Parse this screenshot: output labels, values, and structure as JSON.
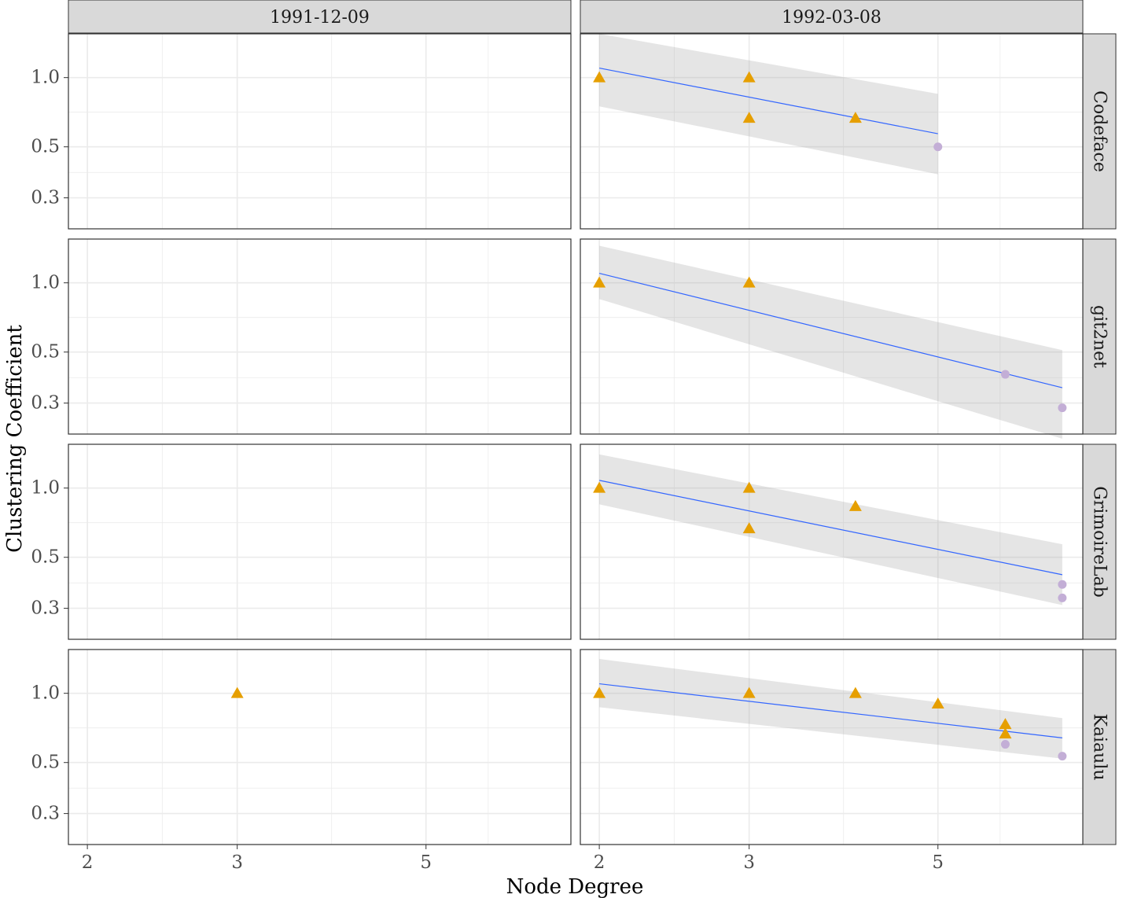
{
  "chart_data": {
    "type": "scatter",
    "xlabel": "Node Degree",
    "ylabel": "Clustering Coefficient",
    "x_scale": "log",
    "y_scale": "log",
    "xlim": [
      1.9,
      7.4
    ],
    "ylim": [
      0.22,
      1.55
    ],
    "x_ticks": [
      2,
      3,
      5
    ],
    "x_tick_labels": [
      "2",
      "3",
      "5"
    ],
    "y_ticks": [
      0.3,
      0.5,
      1.0
    ],
    "y_tick_labels": [
      "0.3",
      "0.5",
      "1.0"
    ],
    "grid": true,
    "facet_columns": [
      "1991-12-09",
      "1992-03-08"
    ],
    "facet_rows": [
      "Codeface",
      "git2net",
      "GrimoireLab",
      "Kaiaulu"
    ],
    "colors": {
      "triangle": "#e69f00",
      "circle": "#c3aed6",
      "fit_line": "#3366ff",
      "ribbon": "#ebebeb",
      "strip_bg": "#d9d9d9",
      "grid": "#ebebeb"
    },
    "panels": [
      {
        "column": "1991-12-09",
        "row": "Codeface",
        "triangles": [],
        "circles": [],
        "fit": null
      },
      {
        "column": "1992-03-08",
        "row": "Codeface",
        "triangles": [
          [
            2,
            1.0
          ],
          [
            3,
            1.0
          ],
          [
            3,
            0.667
          ],
          [
            4,
            0.667
          ]
        ],
        "circles": [
          [
            5,
            0.5
          ]
        ],
        "fit": {
          "x": [
            2,
            5
          ],
          "y": [
            1.1,
            0.57
          ],
          "lower": [
            0.75,
            0.38
          ],
          "upper": [
            1.55,
            0.85
          ]
        }
      },
      {
        "column": "1991-12-09",
        "row": "git2net",
        "triangles": [],
        "circles": [],
        "fit": null
      },
      {
        "column": "1992-03-08",
        "row": "git2net",
        "triangles": [
          [
            2,
            1.0
          ],
          [
            3,
            1.0
          ]
        ],
        "circles": [
          [
            6,
            0.4
          ],
          [
            7,
            0.286
          ]
        ],
        "fit": {
          "x": [
            2,
            7
          ],
          "y": [
            1.1,
            0.35
          ],
          "lower": [
            0.85,
            0.21
          ],
          "upper": [
            1.45,
            0.51
          ]
        }
      },
      {
        "column": "1991-12-09",
        "row": "GrimoireLab",
        "triangles": [],
        "circles": [],
        "fit": null
      },
      {
        "column": "1992-03-08",
        "row": "GrimoireLab",
        "triangles": [
          [
            2,
            1.0
          ],
          [
            3,
            1.0
          ],
          [
            3,
            0.667
          ],
          [
            4,
            0.833
          ]
        ],
        "circles": [
          [
            7,
            0.381
          ],
          [
            7,
            0.333
          ]
        ],
        "fit": {
          "x": [
            2,
            7
          ],
          "y": [
            1.08,
            0.42
          ],
          "lower": [
            0.85,
            0.31
          ],
          "upper": [
            1.4,
            0.57
          ]
        }
      },
      {
        "column": "1991-12-09",
        "row": "Kaiaulu",
        "triangles": [
          [
            3,
            1.0
          ]
        ],
        "circles": [],
        "fit": null
      },
      {
        "column": "1992-03-08",
        "row": "Kaiaulu",
        "triangles": [
          [
            2,
            1.0
          ],
          [
            3,
            1.0
          ],
          [
            4,
            1.0
          ],
          [
            5,
            0.9
          ],
          [
            6,
            0.733
          ],
          [
            6,
            0.667
          ]
        ],
        "circles": [
          [
            6,
            0.6
          ],
          [
            7,
            0.533
          ]
        ],
        "fit": {
          "x": [
            2,
            7
          ],
          "y": [
            1.1,
            0.64
          ],
          "lower": [
            0.87,
            0.52
          ],
          "upper": [
            1.41,
            0.78
          ]
        }
      }
    ]
  }
}
